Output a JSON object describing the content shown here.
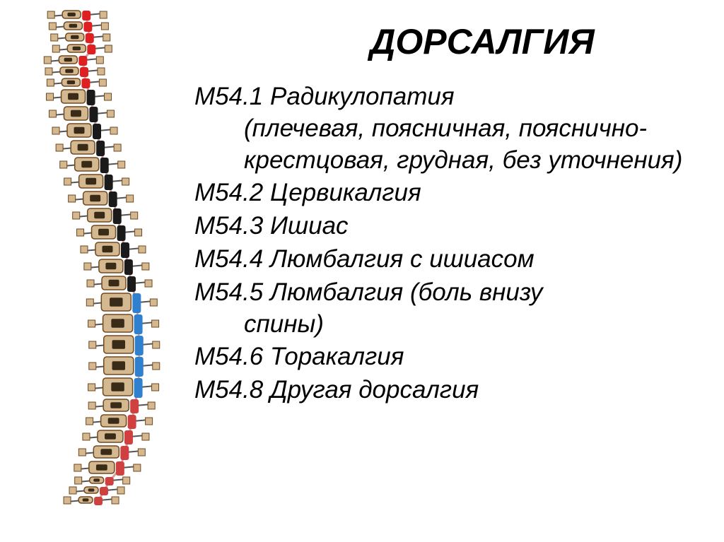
{
  "title": "ДОРСАЛГИЯ",
  "title_fontsize": 50,
  "item_fontsize": 35,
  "items": [
    {
      "code": "М54.1",
      "label": "Радикулопатия",
      "detail": "(плечевая, поясничная, пояснично-крестцовая, грудная, без уточнения)"
    },
    {
      "code": "М54.2",
      "label": "Цервикалгия",
      "detail": ""
    },
    {
      "code": "М54.3",
      "label": "Ишиас",
      "detail": ""
    },
    {
      "code": "М54.4",
      "label": "Люмбалгия с ишиасом",
      "detail": ""
    },
    {
      "code": "М54.5",
      "label": "Люмбалгия (боль внизу",
      "detail": "спины)"
    },
    {
      "code": "М54.6",
      "label": "Торакалгия",
      "detail": ""
    },
    {
      "code": "М54.8",
      "label": "Другая дорсалгия",
      "detail": ""
    }
  ],
  "spine": {
    "background_color": "#ffffff",
    "vertebra_border": "#704820",
    "vertebra_fill": "#d4b890",
    "cord_color": "#1a1a1a",
    "segment_colors": {
      "cervical": "#e02020",
      "thoracic": "#1a1a1a",
      "lumbar": "#3080d0",
      "sacral": "#d04040",
      "coccyx": "#d04040"
    },
    "nerve_color": "#555555"
  }
}
